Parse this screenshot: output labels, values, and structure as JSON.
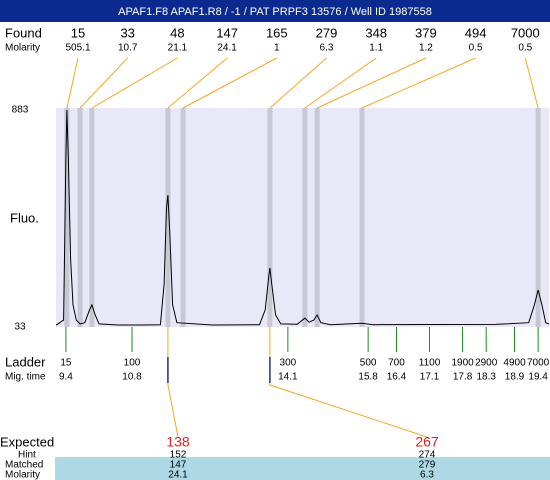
{
  "header": {
    "title": "APAF1.F8  APAF1.R8 / -1 / PAT PRPF3 13576 / Well ID 1987558"
  },
  "chart_data": {
    "type": "electropherogram",
    "y_label": "Fluo.",
    "ylim": [
      33,
      883
    ],
    "yticks": [
      33,
      883
    ],
    "xlim": [
      9.19,
      19.63
    ],
    "trace": {
      "x": [
        9.19,
        9.35,
        9.4,
        9.42,
        9.45,
        9.5,
        9.55,
        9.62,
        9.7,
        9.8,
        9.9,
        9.95,
        10.02,
        10.1,
        10.5,
        11.0,
        11.4,
        11.48,
        11.53,
        11.56,
        11.6,
        11.66,
        11.75,
        12.5,
        13.5,
        13.62,
        13.7,
        13.72,
        13.76,
        13.84,
        13.95,
        14.3,
        14.46,
        14.55,
        14.65,
        14.72,
        14.8,
        15.0,
        15.67,
        15.9,
        18.5,
        19.2,
        19.32,
        19.4,
        19.48,
        19.56,
        19.63
      ],
      "y": [
        40,
        60,
        700,
        883,
        700,
        300,
        120,
        60,
        45,
        50,
        100,
        119,
        80,
        45,
        41,
        41,
        42,
        200,
        500,
        550,
        400,
        120,
        50,
        41,
        42,
        100,
        240,
        264,
        200,
        80,
        45,
        44,
        68,
        52,
        60,
        80,
        50,
        42,
        48,
        42,
        43,
        50,
        120,
        178,
        120,
        50,
        45
      ]
    },
    "found": {
      "label": "Found",
      "molarity_label": "Molarity",
      "sizes": [
        15,
        33,
        48,
        147,
        165,
        279,
        348,
        379,
        494,
        7000
      ],
      "molarity": [
        505.1,
        10.7,
        21.1,
        24.1,
        1,
        6.3,
        1.1,
        1.2,
        0.5,
        0.5
      ],
      "times": [
        9.42,
        9.7,
        9.95,
        11.56,
        11.88,
        13.72,
        14.46,
        14.72,
        15.67,
        19.4
      ]
    },
    "ladder": {
      "label": "Ladder",
      "time_label": "Mig. time",
      "sizes": [
        15,
        100,
        300,
        500,
        700,
        1100,
        1900,
        2900,
        4900,
        7000
      ],
      "times": [
        9.4,
        10.8,
        14.1,
        15.8,
        16.4,
        17.1,
        17.8,
        18.3,
        18.9,
        19.4
      ]
    },
    "expected": {
      "label": "Expected",
      "hint_label": "Hint",
      "matched_label": "Matched",
      "molarity_label": "Molarity",
      "sizes": [
        138,
        267
      ],
      "hint": [
        152,
        274
      ],
      "matched": [
        147,
        279
      ],
      "molarity": [
        24.1,
        6.3
      ]
    }
  }
}
